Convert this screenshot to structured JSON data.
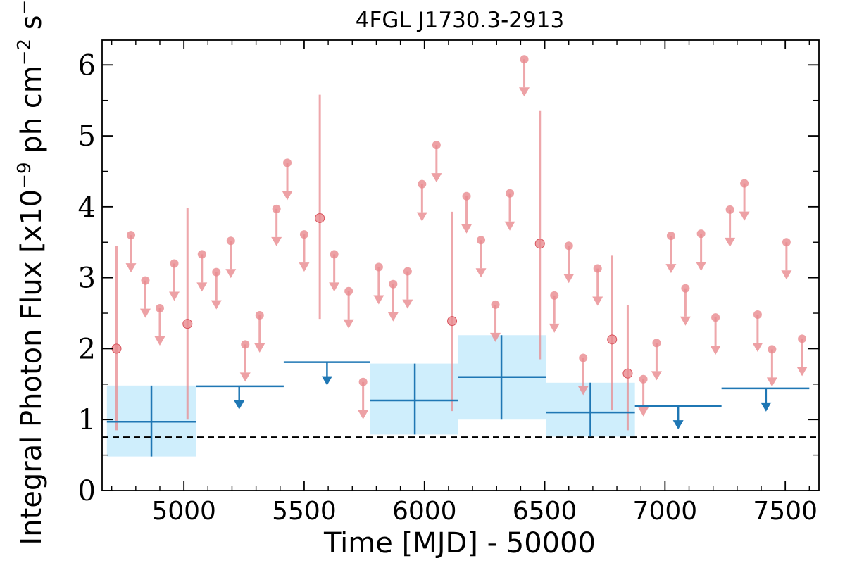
{
  "chart_data": {
    "type": "scatter",
    "title": "4FGL J1730.3-2913",
    "xlabel": "Time [MJD] - 50000",
    "ylabel": "Integral Photon Flux [x10^-9 ph cm^-2 s^-1]",
    "ylabel_parts": {
      "a": "Integral Photon Flux [x10",
      "b": "−9",
      "c": " ph cm",
      "d": "−2",
      "e": " s",
      "f": "−1",
      "g": "]"
    },
    "xlim": [
      4660,
      7640
    ],
    "ylim": [
      0,
      6.35
    ],
    "x_ticks": [
      5000,
      5500,
      6000,
      6500,
      7000,
      7500
    ],
    "y_ticks": [
      0,
      1,
      2,
      3,
      4,
      5,
      6
    ],
    "reference_level": 0.75,
    "colors": {
      "fine_bins": "#e8898f",
      "coarse_bins": "#1f77b4",
      "coarse_band": "#cfeefc",
      "reference_line": "#000000"
    },
    "series": [
      {
        "kind": "fine-detections",
        "points": [
          {
            "x": 4720,
            "y": 2.0,
            "lo": 0.85,
            "hi": 3.45
          },
          {
            "x": 5015,
            "y": 2.35,
            "lo": 1.0,
            "hi": 3.98
          },
          {
            "x": 5565,
            "y": 3.84,
            "lo": 2.42,
            "hi": 5.58
          },
          {
            "x": 6115,
            "y": 2.39,
            "lo": 1.12,
            "hi": 3.93
          },
          {
            "x": 6480,
            "y": 3.48,
            "lo": 1.85,
            "hi": 5.35
          },
          {
            "x": 6780,
            "y": 2.13,
            "lo": 1.13,
            "hi": 3.31
          },
          {
            "x": 6845,
            "y": 1.65,
            "lo": 0.85,
            "hi": 2.61
          }
        ]
      },
      {
        "kind": "fine-upper-limits",
        "points": [
          {
            "x": 4780,
            "y": 3.6
          },
          {
            "x": 4840,
            "y": 2.96
          },
          {
            "x": 4900,
            "y": 2.57
          },
          {
            "x": 4960,
            "y": 3.2
          },
          {
            "x": 5075,
            "y": 3.33
          },
          {
            "x": 5135,
            "y": 3.08
          },
          {
            "x": 5195,
            "y": 3.52
          },
          {
            "x": 5255,
            "y": 2.06
          },
          {
            "x": 5315,
            "y": 2.47
          },
          {
            "x": 5385,
            "y": 3.97
          },
          {
            "x": 5430,
            "y": 4.62
          },
          {
            "x": 5500,
            "y": 3.61
          },
          {
            "x": 5625,
            "y": 3.33
          },
          {
            "x": 5685,
            "y": 2.81
          },
          {
            "x": 5745,
            "y": 1.53
          },
          {
            "x": 5810,
            "y": 3.15
          },
          {
            "x": 5870,
            "y": 2.91
          },
          {
            "x": 5930,
            "y": 3.09
          },
          {
            "x": 5990,
            "y": 4.32
          },
          {
            "x": 6050,
            "y": 4.87
          },
          {
            "x": 6175,
            "y": 4.15
          },
          {
            "x": 6235,
            "y": 3.53
          },
          {
            "x": 6295,
            "y": 2.62
          },
          {
            "x": 6355,
            "y": 4.19
          },
          {
            "x": 6415,
            "y": 6.08
          },
          {
            "x": 6540,
            "y": 2.75
          },
          {
            "x": 6600,
            "y": 3.45
          },
          {
            "x": 6660,
            "y": 1.87
          },
          {
            "x": 6720,
            "y": 3.13
          },
          {
            "x": 6910,
            "y": 1.57
          },
          {
            "x": 6965,
            "y": 2.08
          },
          {
            "x": 7025,
            "y": 3.59
          },
          {
            "x": 7085,
            "y": 2.85
          },
          {
            "x": 7150,
            "y": 3.62
          },
          {
            "x": 7210,
            "y": 2.44
          },
          {
            "x": 7270,
            "y": 3.96
          },
          {
            "x": 7330,
            "y": 4.33
          },
          {
            "x": 7385,
            "y": 2.48
          },
          {
            "x": 7445,
            "y": 1.99
          },
          {
            "x": 7505,
            "y": 3.5
          },
          {
            "x": 7570,
            "y": 2.14
          }
        ]
      },
      {
        "kind": "coarse-detections",
        "bins": [
          {
            "x0": 4680,
            "x1": 5050,
            "x": 4865,
            "y": 0.97,
            "lo": 0.48,
            "hi": 1.48
          },
          {
            "x0": 5775,
            "x1": 6140,
            "x": 5960,
            "y": 1.27,
            "lo": 0.79,
            "hi": 1.79
          },
          {
            "x0": 6140,
            "x1": 6505,
            "x": 6320,
            "y": 1.6,
            "lo": 1.0,
            "hi": 2.19
          },
          {
            "x0": 6505,
            "x1": 6875,
            "x": 6690,
            "y": 1.1,
            "lo": 0.76,
            "hi": 1.52
          }
        ]
      },
      {
        "kind": "coarse-upper-limits",
        "bins": [
          {
            "x0": 5050,
            "x1": 5415,
            "x": 5230,
            "y": 1.47
          },
          {
            "x0": 5415,
            "x1": 5775,
            "x": 5595,
            "y": 1.81
          },
          {
            "x0": 6875,
            "x1": 7235,
            "x": 7055,
            "y": 1.19
          },
          {
            "x0": 7235,
            "x1": 7600,
            "x": 7420,
            "y": 1.44
          }
        ]
      }
    ]
  }
}
